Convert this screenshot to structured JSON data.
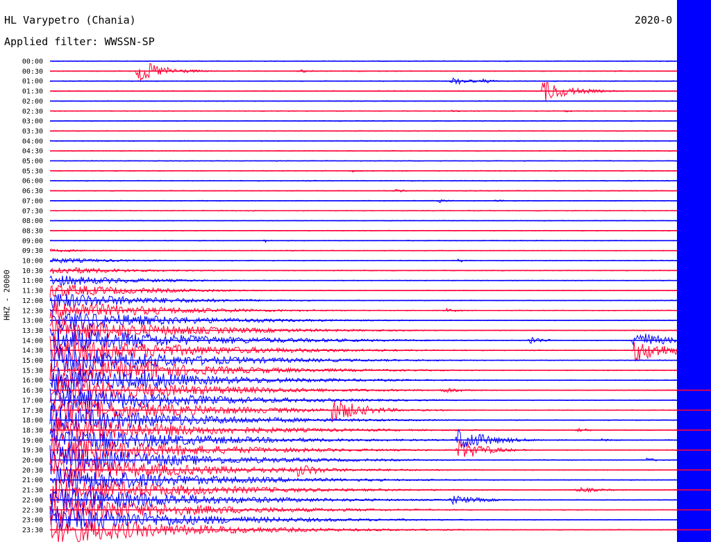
{
  "header": {
    "title": "HL Varypetro (Chania)",
    "date": "2020-0",
    "filter": "Applied filter: WWSSN-SP",
    "channel": "HHZ - 20000"
  },
  "chart_data": {
    "type": "line",
    "title": "HL Varypetro (Chania)",
    "subtitle": "Applied filter: WWSSN-SP",
    "ylabel": "HHZ - 20000",
    "xlabel": "",
    "colors": {
      "even_row": "#0000ff",
      "odd_row": "#ff0033"
    },
    "rows": [
      "00:00",
      "00:30",
      "01:00",
      "01:30",
      "02:00",
      "02:30",
      "03:00",
      "03:30",
      "04:00",
      "04:30",
      "05:00",
      "05:30",
      "06:00",
      "06:30",
      "07:00",
      "07:30",
      "08:00",
      "08:30",
      "09:00",
      "09:30",
      "10:00",
      "10:30",
      "11:00",
      "11:30",
      "12:00",
      "12:30",
      "13:00",
      "13:30",
      "14:00",
      "14:30",
      "15:00",
      "15:30",
      "16:00",
      "16:30",
      "17:00",
      "17:30",
      "18:00",
      "18:30",
      "19:00",
      "19:30",
      "20:00",
      "20:30",
      "21:00",
      "21:30",
      "22:00",
      "22:30",
      "23:00",
      "23:30"
    ],
    "events": [
      {
        "row": 1,
        "pos": 0.14,
        "amp": 1.0,
        "dur": 0.04
      },
      {
        "row": 1,
        "pos": 0.4,
        "amp": 0.15,
        "dur": 0.02
      },
      {
        "row": 2,
        "pos": 0.64,
        "amp": 0.35,
        "dur": 0.03
      },
      {
        "row": 2,
        "pos": 0.69,
        "amp": 0.2,
        "dur": 0.02
      },
      {
        "row": 3,
        "pos": 0.785,
        "amp": 1.0,
        "dur": 0.04
      },
      {
        "row": 5,
        "pos": 0.64,
        "amp": 0.12,
        "dur": 0.015
      },
      {
        "row": 5,
        "pos": 0.82,
        "amp": 0.1,
        "dur": 0.02
      },
      {
        "row": 11,
        "pos": 0.48,
        "amp": 0.15,
        "dur": 0.015
      },
      {
        "row": 13,
        "pos": 0.55,
        "amp": 0.15,
        "dur": 0.02
      },
      {
        "row": 14,
        "pos": 0.62,
        "amp": 0.2,
        "dur": 0.015
      },
      {
        "row": 14,
        "pos": 0.71,
        "amp": 0.15,
        "dur": 0.015
      },
      {
        "row": 18,
        "pos": 0.34,
        "amp": 0.2,
        "dur": 0.01
      },
      {
        "row": 20,
        "pos": 0.65,
        "amp": 0.15,
        "dur": 0.02
      },
      {
        "row": 25,
        "pos": 0.05,
        "amp": 0.2,
        "dur": 0.01
      },
      {
        "row": 25,
        "pos": 0.63,
        "amp": 0.2,
        "dur": 0.02
      },
      {
        "row": 27,
        "pos": 0.31,
        "amp": 0.15,
        "dur": 0.01
      },
      {
        "row": 28,
        "pos": 0.41,
        "amp": 0.2,
        "dur": 0.008
      },
      {
        "row": 28,
        "pos": 0.765,
        "amp": 0.4,
        "dur": 0.02
      },
      {
        "row": 28,
        "pos": 0.93,
        "amp": 1.0,
        "dur": 0.04
      },
      {
        "row": 29,
        "pos": 0.93,
        "amp": 1.0,
        "dur": 0.06
      },
      {
        "row": 31,
        "pos": 0.15,
        "amp": 1.0,
        "dur": 0.08
      },
      {
        "row": 32,
        "pos": 0.15,
        "amp": 1.0,
        "dur": 0.08
      },
      {
        "row": 33,
        "pos": 0.32,
        "amp": 0.3,
        "dur": 0.02
      },
      {
        "row": 33,
        "pos": 0.625,
        "amp": 0.3,
        "dur": 0.03
      },
      {
        "row": 35,
        "pos": 0.45,
        "amp": 1.0,
        "dur": 0.05
      },
      {
        "row": 37,
        "pos": 0.84,
        "amp": 0.2,
        "dur": 0.02
      },
      {
        "row": 38,
        "pos": 0.65,
        "amp": 1.0,
        "dur": 0.05
      },
      {
        "row": 38,
        "pos": 0.88,
        "amp": 0.15,
        "dur": 0.015
      },
      {
        "row": 39,
        "pos": 0.65,
        "amp": 1.0,
        "dur": 0.04
      },
      {
        "row": 40,
        "pos": 0.95,
        "amp": 0.2,
        "dur": 0.02
      },
      {
        "row": 41,
        "pos": 0.395,
        "amp": 0.6,
        "dur": 0.04
      },
      {
        "row": 42,
        "pos": 0.01,
        "amp": 0.6,
        "dur": 0.03
      },
      {
        "row": 43,
        "pos": 0.84,
        "amp": 0.25,
        "dur": 0.04
      },
      {
        "row": 44,
        "pos": 0.64,
        "amp": 0.4,
        "dur": 0.05
      }
    ],
    "large_event": {
      "start_row": 19,
      "pos": 0.0,
      "amp": 1.0,
      "dur": 0.25
    }
  }
}
